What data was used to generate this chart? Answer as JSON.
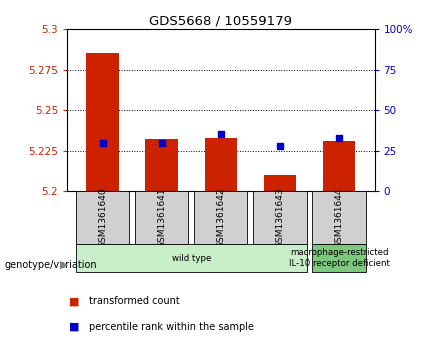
{
  "title": "GDS5668 / 10559179",
  "samples": [
    "GSM1361640",
    "GSM1361641",
    "GSM1361642",
    "GSM1361643",
    "GSM1361644"
  ],
  "transformed_counts": [
    5.285,
    5.232,
    5.233,
    5.21,
    5.231
  ],
  "percentile_ranks": [
    30,
    30,
    35,
    28,
    33
  ],
  "ylim_left": [
    5.2,
    5.3
  ],
  "ylim_right": [
    0,
    100
  ],
  "yticks_left": [
    5.2,
    5.225,
    5.25,
    5.275,
    5.3
  ],
  "yticks_right": [
    0,
    25,
    50,
    75,
    100
  ],
  "bar_color": "#cc2200",
  "marker_color": "#0000cc",
  "bg_color": "#ffffff",
  "sample_box_color": "#d0d0d0",
  "genotype_groups": [
    {
      "label": "wild type",
      "samples": [
        0,
        1,
        2,
        3
      ],
      "color": "#c8eec8"
    },
    {
      "label": "macrophage-restricted\nIL-10 receptor deficient",
      "samples": [
        4
      ],
      "color": "#7ec87e"
    }
  ],
  "legend_items": [
    {
      "color": "#cc2200",
      "label": "transformed count"
    },
    {
      "color": "#0000cc",
      "label": "percentile rank within the sample"
    }
  ],
  "genotype_label": "genotype/variation"
}
